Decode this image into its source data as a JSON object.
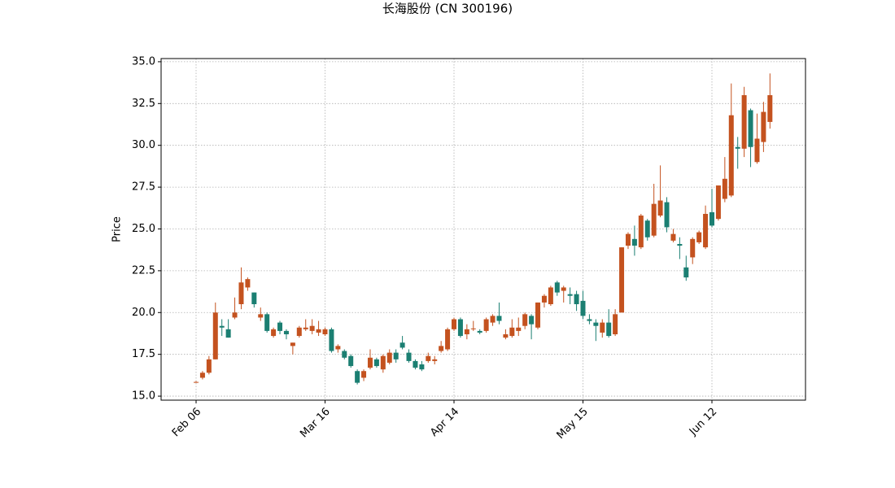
{
  "chart_data": {
    "type": "candlestick",
    "title": "长海股份 (CN 300196)",
    "y_label": "Price",
    "categories": [
      "Feb 06",
      null,
      null,
      null,
      null,
      null,
      null,
      null,
      null,
      null,
      null,
      null,
      null,
      null,
      null,
      null,
      null,
      null,
      null,
      null,
      "Mar 16",
      null,
      null,
      null,
      null,
      null,
      null,
      null,
      null,
      null,
      null,
      null,
      null,
      null,
      null,
      null,
      null,
      null,
      null,
      null,
      "Apr 14",
      null,
      null,
      null,
      null,
      null,
      null,
      null,
      null,
      null,
      null,
      null,
      null,
      null,
      null,
      null,
      null,
      null,
      null,
      null,
      "May 15",
      null,
      null,
      null,
      null,
      null,
      null,
      null,
      null,
      null,
      null,
      null,
      null,
      null,
      null,
      null,
      null,
      null,
      null,
      null,
      "Jun 12",
      null,
      null,
      null,
      null,
      null,
      null,
      null,
      null,
      null
    ],
    "open": [
      15.8,
      16.1,
      16.4,
      17.2,
      19.2,
      19.0,
      19.7,
      20.5,
      21.5,
      21.2,
      19.7,
      19.9,
      18.6,
      19.4,
      18.9,
      18.0,
      18.6,
      19.0,
      18.9,
      18.8,
      18.7,
      19.0,
      17.8,
      17.7,
      17.4,
      16.5,
      16.1,
      16.7,
      17.2,
      16.6,
      17.0,
      17.6,
      18.2,
      17.6,
      17.1,
      16.9,
      17.1,
      17.1,
      17.7,
      17.8,
      19.0,
      19.6,
      18.7,
      19.0,
      18.9,
      18.9,
      19.4,
      19.8,
      18.5,
      18.6,
      18.9,
      19.2,
      19.8,
      19.1,
      20.6,
      20.5,
      21.8,
      21.3,
      21.1,
      21.1,
      20.7,
      19.6,
      19.4,
      18.8,
      19.4,
      18.7,
      20.0,
      24.0,
      24.4,
      23.9,
      25.5,
      24.6,
      25.8,
      26.6,
      24.3,
      24.1,
      22.7,
      23.3,
      24.2,
      23.9,
      26.0,
      25.6,
      26.8,
      27.0,
      29.9,
      29.8,
      32.1,
      29.0,
      30.2,
      31.4
    ],
    "high": [
      15.9,
      16.5,
      17.4,
      20.6,
      19.6,
      19.6,
      20.9,
      22.7,
      22.1,
      21.2,
      20.3,
      20.0,
      19.1,
      19.5,
      19.0,
      18.2,
      19.2,
      19.6,
      19.6,
      19.5,
      19.1,
      19.1,
      18.1,
      17.8,
      17.5,
      16.6,
      16.6,
      17.8,
      17.3,
      17.5,
      17.8,
      17.8,
      18.6,
      17.8,
      17.2,
      17.1,
      17.6,
      17.4,
      18.3,
      19.1,
      19.7,
      19.7,
      19.3,
      19.5,
      19.0,
      19.7,
      19.9,
      20.6,
      19.0,
      19.6,
      19.7,
      20.0,
      19.9,
      20.6,
      21.1,
      21.6,
      21.9,
      21.6,
      21.5,
      21.3,
      21.3,
      19.9,
      19.6,
      19.6,
      20.2,
      20.2,
      23.9,
      24.8,
      25.2,
      25.9,
      25.6,
      27.7,
      28.8,
      26.9,
      25.0,
      24.5,
      23.4,
      24.5,
      24.9,
      26.4,
      27.4,
      27.6,
      29.3,
      33.7,
      30.5,
      33.5,
      32.2,
      31.9,
      32.6,
      34.3
    ],
    "low": [
      15.8,
      16.0,
      16.3,
      17.2,
      18.6,
      18.5,
      19.6,
      20.2,
      21.3,
      20.3,
      19.5,
      18.8,
      18.5,
      18.7,
      18.4,
      17.5,
      18.5,
      18.9,
      18.7,
      18.6,
      18.6,
      17.6,
      17.6,
      17.2,
      16.7,
      15.7,
      15.9,
      16.6,
      16.7,
      16.4,
      16.9,
      17.0,
      17.8,
      17.0,
      16.6,
      16.5,
      17.0,
      16.9,
      17.6,
      17.7,
      18.9,
      18.5,
      18.4,
      18.9,
      18.7,
      18.8,
      19.2,
      19.3,
      18.4,
      18.5,
      18.6,
      19.0,
      18.4,
      19.0,
      20.3,
      20.4,
      21.0,
      20.6,
      20.5,
      20.1,
      19.6,
      19.3,
      18.3,
      18.5,
      18.5,
      18.6,
      20.0,
      23.8,
      23.4,
      23.8,
      24.3,
      24.5,
      25.7,
      24.8,
      24.2,
      23.2,
      21.9,
      22.9,
      24.1,
      23.8,
      25.1,
      25.5,
      26.6,
      26.9,
      28.6,
      29.3,
      28.7,
      28.9,
      29.6,
      31.0
    ],
    "close": [
      15.85,
      16.4,
      17.2,
      20.0,
      19.1,
      18.5,
      20.0,
      21.8,
      22.0,
      20.5,
      19.9,
      18.9,
      19.0,
      18.9,
      18.7,
      18.2,
      19.1,
      19.1,
      19.2,
      19.0,
      19.0,
      17.7,
      18.0,
      17.3,
      16.8,
      15.8,
      16.5,
      17.3,
      16.8,
      17.4,
      17.6,
      17.2,
      17.9,
      17.1,
      16.7,
      16.6,
      17.4,
      17.2,
      18.0,
      19.0,
      19.6,
      18.6,
      19.0,
      19.05,
      18.8,
      19.6,
      19.8,
      19.5,
      18.7,
      19.1,
      19.1,
      19.9,
      19.3,
      20.6,
      21.0,
      21.5,
      21.2,
      21.5,
      21.0,
      20.5,
      19.8,
      19.5,
      19.2,
      19.4,
      18.6,
      19.9,
      23.9,
      24.7,
      24.0,
      25.8,
      24.5,
      26.5,
      26.7,
      25.1,
      24.7,
      24.0,
      22.1,
      24.4,
      24.8,
      25.9,
      25.2,
      27.6,
      28.0,
      31.8,
      29.8,
      33.0,
      29.9,
      30.4,
      32.0,
      33.0
    ],
    "up_color": "#c4521f",
    "down_color": "#1b7f72",
    "ylim": [
      14.76,
      35.19
    ],
    "yticks": [
      {
        "value": 15,
        "label": "15.0"
      },
      17.5,
      {
        "value": 20,
        "label": "20.0"
      },
      22.5,
      {
        "value": 25,
        "label": "25.0"
      },
      27.5,
      {
        "value": 30,
        "label": "30.0"
      },
      32.5,
      {
        "value": 35,
        "label": "35.0"
      }
    ],
    "grid": true
  }
}
